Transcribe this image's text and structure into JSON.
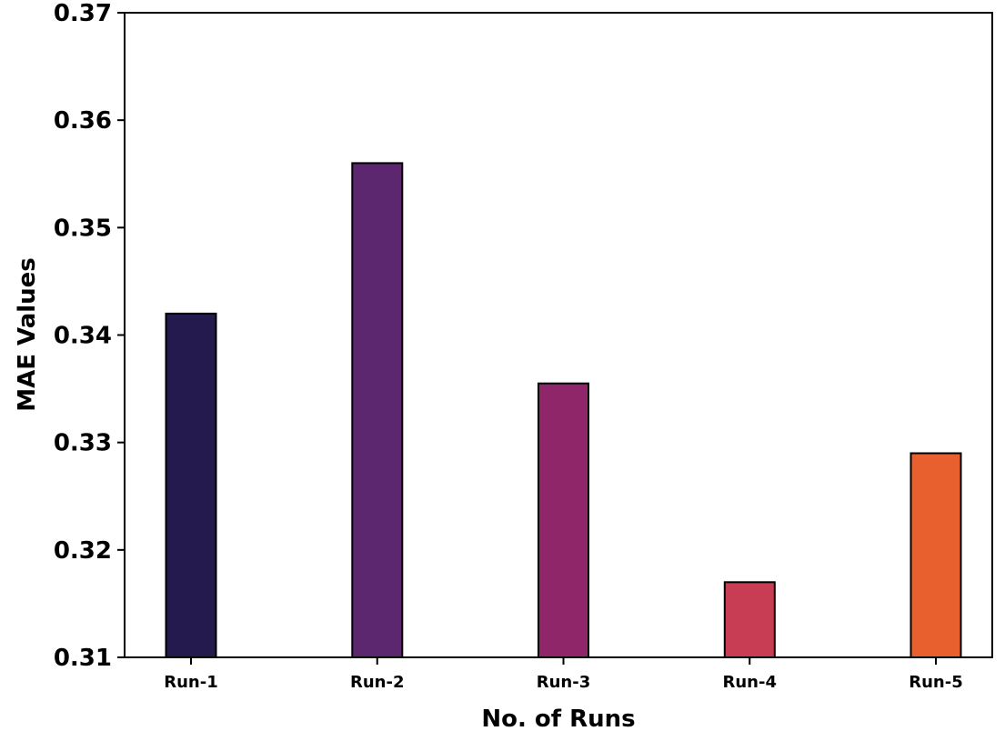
{
  "chart_data": {
    "type": "bar",
    "title": "",
    "xlabel": "No. of Runs",
    "ylabel": "MAE Values",
    "categories": [
      "Run-1",
      "Run-2",
      "Run-3",
      "Run-4",
      "Run-5"
    ],
    "values": [
      0.342,
      0.356,
      0.3355,
      0.317,
      0.329
    ],
    "colors": [
      "#251a4e",
      "#5c276f",
      "#8e2669",
      "#c83d53",
      "#e8602e"
    ],
    "ylim": [
      0.31,
      0.37
    ],
    "yticks": [
      "0.31",
      "0.32",
      "0.33",
      "0.34",
      "0.35",
      "0.36",
      "0.37"
    ],
    "grid": false,
    "legend": "none"
  }
}
